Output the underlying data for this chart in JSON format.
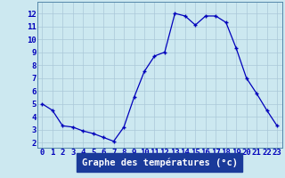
{
  "hours": [
    0,
    1,
    2,
    3,
    4,
    5,
    6,
    7,
    8,
    9,
    10,
    11,
    12,
    13,
    14,
    15,
    16,
    17,
    18,
    19,
    20,
    21,
    22,
    23
  ],
  "temperatures": [
    5.0,
    4.5,
    3.3,
    3.2,
    2.9,
    2.7,
    2.4,
    2.1,
    3.2,
    5.5,
    7.5,
    8.7,
    9.0,
    12.0,
    11.8,
    11.1,
    11.8,
    11.8,
    11.3,
    9.3,
    7.0,
    5.8,
    4.5,
    3.3
  ],
  "line_color": "#0000bb",
  "marker_color": "#0000bb",
  "bg_color": "#cce8f0",
  "grid_color": "#aac8d8",
  "xlabel": "Graphe des températures (°c)",
  "xlabel_bg": "#1a3a9a",
  "xlabel_color": "#ffffff",
  "ylabel_ticks": [
    2,
    3,
    4,
    5,
    6,
    7,
    8,
    9,
    10,
    11,
    12
  ],
  "xlim": [
    -0.5,
    23.5
  ],
  "ylim": [
    1.6,
    12.9
  ],
  "tick_label_color": "#0000bb",
  "xlabel_fontsize": 7.5,
  "tick_fontsize": 6.5
}
